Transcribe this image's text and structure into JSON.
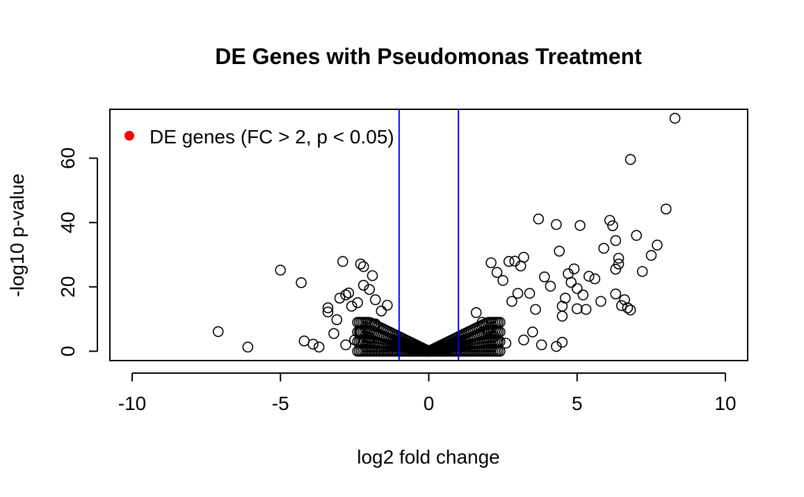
{
  "chart_data": {
    "type": "scatter",
    "title": "DE Genes with Pseudomonas Treatment",
    "xlabel": "log2 fold change",
    "ylabel": "-log10 p-value",
    "xlim": [
      -10.75,
      10.75
    ],
    "ylim": [
      -2.9,
      75.2
    ],
    "x_ticks": [
      -10,
      -5,
      0,
      5,
      10
    ],
    "x_tick_labels": [
      "-10",
      "-5",
      "0",
      "5",
      "10"
    ],
    "y_ticks": [
      0,
      20,
      40,
      60
    ],
    "y_tick_labels": [
      "0",
      "20",
      "40",
      "60"
    ],
    "grid": false,
    "box": true,
    "legend": {
      "position": "top-left",
      "entries": [
        {
          "label": "DE genes (FC > 2, p < 0.05)",
          "marker": "filled-circle",
          "color": "#ff0000"
        }
      ]
    },
    "vlines": [
      {
        "x": -1,
        "color": "#0000ff"
      },
      {
        "x": 1,
        "color": "#0000ff"
      }
    ],
    "marker": {
      "shape": "open-circle",
      "color": "#000000"
    },
    "series": [
      {
        "points": [
          [
            -7.1,
            6.1
          ],
          [
            -6.1,
            1.3
          ],
          [
            -5.0,
            25.2
          ],
          [
            -4.3,
            21.3
          ],
          [
            -4.2,
            3.2
          ],
          [
            -3.9,
            2.2
          ],
          [
            -3.7,
            1.3
          ],
          [
            -3.4,
            13.5
          ],
          [
            -3.4,
            12.2
          ],
          [
            -3.2,
            5.5
          ],
          [
            -3.1,
            9.8
          ],
          [
            -3.0,
            16.5
          ],
          [
            -2.9,
            27.9
          ],
          [
            -2.8,
            17.5
          ],
          [
            -2.7,
            18.1
          ],
          [
            -2.6,
            14.0
          ],
          [
            -2.4,
            15.1
          ],
          [
            -2.3,
            27.1
          ],
          [
            -2.2,
            26.3
          ],
          [
            -2.2,
            20.5
          ],
          [
            -2.0,
            19.2
          ],
          [
            -1.9,
            23.5
          ],
          [
            -1.8,
            16.0
          ],
          [
            -1.6,
            12.5
          ],
          [
            -1.4,
            14.3
          ],
          [
            -2.5,
            3.5
          ],
          [
            -2.8,
            2.0
          ],
          [
            -2.3,
            6.0
          ],
          [
            -2.0,
            4.0
          ],
          [
            -1.8,
            8.5
          ],
          [
            2.1,
            27.5
          ],
          [
            2.3,
            24.5
          ],
          [
            2.5,
            22.0
          ],
          [
            2.7,
            27.9
          ],
          [
            2.9,
            28.0
          ],
          [
            3.1,
            26.5
          ],
          [
            3.2,
            29.2
          ],
          [
            3.0,
            18.0
          ],
          [
            2.8,
            15.5
          ],
          [
            3.4,
            18.0
          ],
          [
            3.6,
            13.0
          ],
          [
            3.7,
            41.1
          ],
          [
            3.9,
            23.1
          ],
          [
            4.1,
            20.2
          ],
          [
            4.3,
            39.4
          ],
          [
            4.4,
            31.1
          ],
          [
            4.5,
            14.0
          ],
          [
            4.5,
            10.9
          ],
          [
            4.6,
            16.5
          ],
          [
            4.7,
            24.1
          ],
          [
            4.8,
            21.4
          ],
          [
            4.9,
            25.6
          ],
          [
            5.0,
            19.5
          ],
          [
            5.0,
            13.2
          ],
          [
            5.1,
            39.1
          ],
          [
            5.2,
            17.5
          ],
          [
            5.3,
            13.0
          ],
          [
            5.4,
            23.3
          ],
          [
            5.6,
            22.5
          ],
          [
            5.8,
            15.5
          ],
          [
            5.9,
            32.0
          ],
          [
            6.1,
            40.7
          ],
          [
            6.2,
            39.0
          ],
          [
            6.3,
            34.4
          ],
          [
            6.4,
            28.9
          ],
          [
            6.3,
            25.5
          ],
          [
            6.4,
            27.1
          ],
          [
            6.3,
            17.8
          ],
          [
            6.5,
            14.2
          ],
          [
            6.6,
            16.0
          ],
          [
            6.7,
            13.5
          ],
          [
            6.8,
            12.8
          ],
          [
            6.8,
            59.6
          ],
          [
            7.0,
            36.0
          ],
          [
            7.2,
            24.8
          ],
          [
            7.5,
            29.8
          ],
          [
            7.7,
            33.0
          ],
          [
            8.0,
            44.2
          ],
          [
            8.3,
            72.4
          ],
          [
            3.8,
            2.0
          ],
          [
            4.3,
            1.5
          ],
          [
            4.5,
            2.8
          ],
          [
            3.5,
            6.0
          ],
          [
            3.2,
            3.5
          ],
          [
            2.6,
            2.5
          ],
          [
            2.2,
            4.5
          ],
          [
            2.0,
            6.5
          ],
          [
            1.8,
            9.0
          ],
          [
            1.6,
            12.0
          ]
        ]
      }
    ]
  }
}
